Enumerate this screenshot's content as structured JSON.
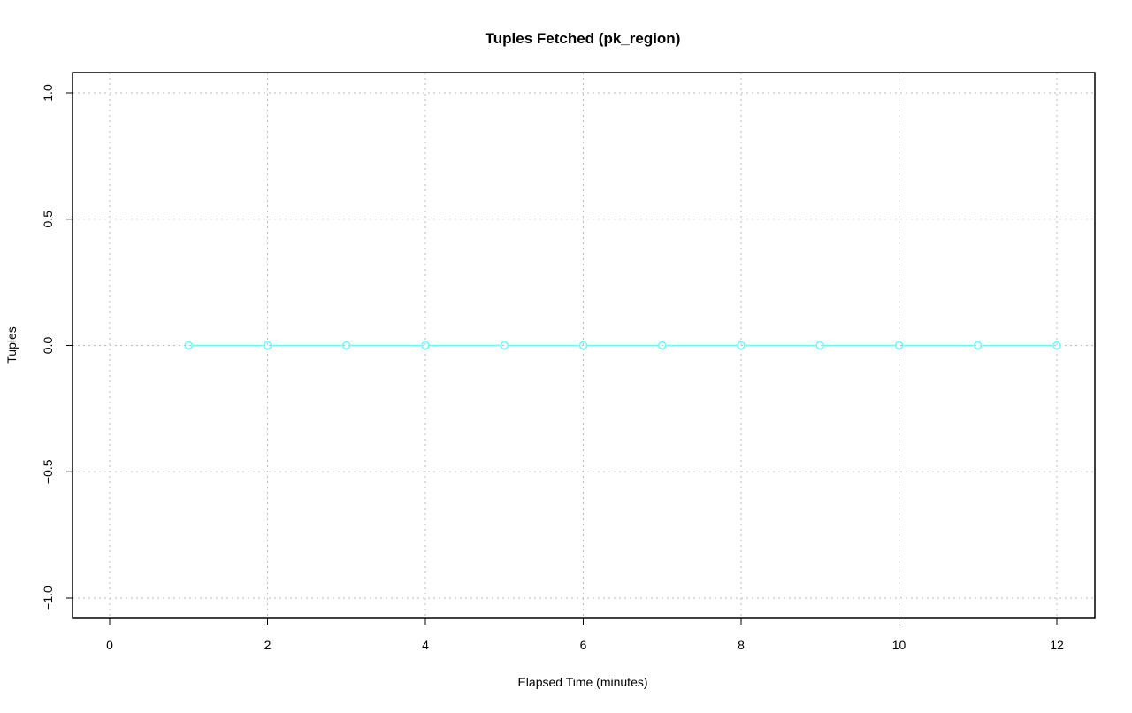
{
  "chart_data": {
    "type": "line",
    "title": "Tuples Fetched (pk_region)",
    "xlabel": "Elapsed Time (minutes)",
    "ylabel": "Tuples",
    "xlim": [
      -0.5,
      12.5
    ],
    "ylim": [
      -1.08,
      1.08
    ],
    "xticks": [
      0,
      2,
      4,
      6,
      8,
      10,
      12
    ],
    "yticks": [
      -1.0,
      -0.5,
      0.0,
      0.5,
      1.0
    ],
    "xtick_labels": [
      "0",
      "2",
      "4",
      "6",
      "8",
      "10",
      "12"
    ],
    "ytick_labels": [
      "−1.0",
      "−0.5",
      "0.0",
      "0.5",
      "1.0"
    ],
    "grid": true,
    "series": [
      {
        "color": "#66ffff",
        "marker": "open-circle",
        "x": [
          1,
          2,
          3,
          4,
          5,
          6,
          7,
          8,
          9,
          10,
          11,
          12
        ],
        "y": [
          0,
          0,
          0,
          0,
          0,
          0,
          0,
          0,
          0,
          0,
          0,
          0
        ]
      }
    ]
  }
}
